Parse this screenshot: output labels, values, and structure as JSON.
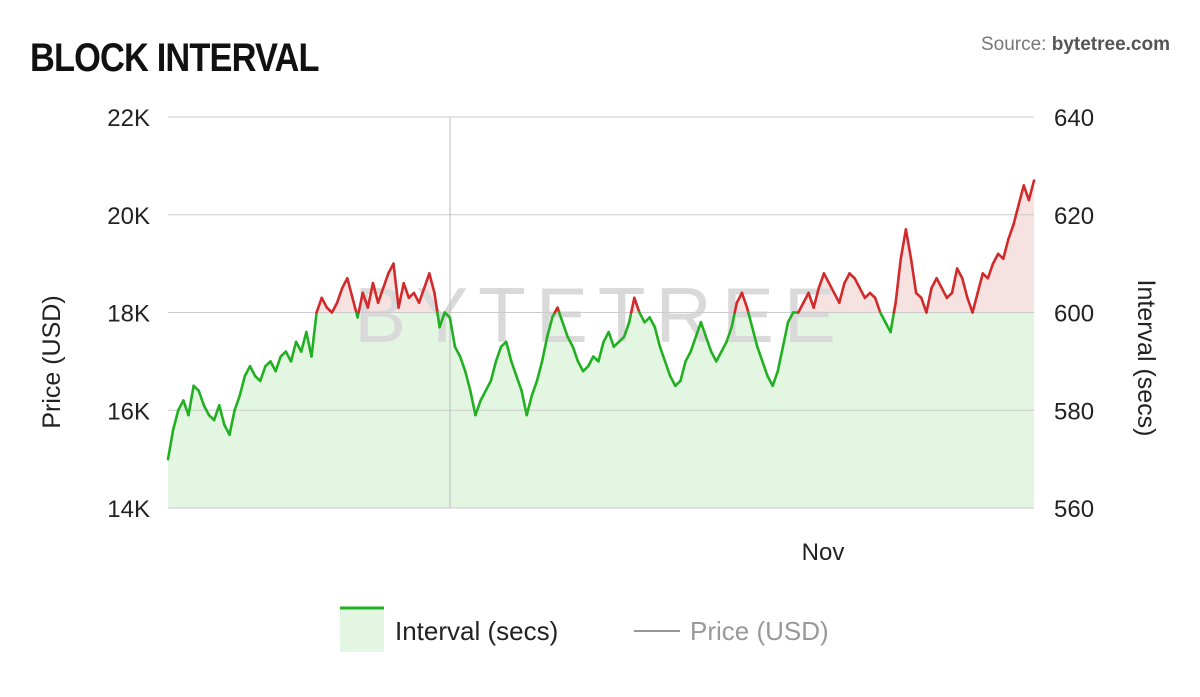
{
  "title": "BLOCK INTERVAL",
  "source": {
    "prefix": "Source:",
    "site": "bytetree.com"
  },
  "watermark": "BYTETREE",
  "colors": {
    "above": "#d22a2a",
    "below": "#22b022",
    "above_fill": "#f7e2e2",
    "below_fill": "#e3f6e1",
    "grid": "#cccccc",
    "price": "#888888"
  },
  "chart_data": {
    "type": "area",
    "title": "BLOCK INTERVAL",
    "x_tick_labels": [
      "Nov"
    ],
    "y_left": {
      "label": "Price (USD)",
      "ticks": [
        "14K",
        "16K",
        "18K",
        "20K",
        "22K"
      ],
      "range": [
        14000,
        22000
      ]
    },
    "y_right": {
      "label": "Interval (secs)",
      "ticks": [
        "560",
        "580",
        "600",
        "620",
        "640"
      ],
      "range": [
        560,
        640
      ]
    },
    "baseline": 600,
    "series": [
      {
        "name": "Interval (secs)",
        "axis": "right",
        "values": [
          570,
          576,
          580,
          582,
          579,
          585,
          584,
          581,
          579,
          578,
          581,
          577,
          575,
          580,
          583,
          587,
          589,
          587,
          586,
          589,
          590,
          588,
          591,
          592,
          590,
          594,
          592,
          596,
          591,
          600,
          603,
          601,
          600,
          602,
          605,
          607,
          603,
          599,
          604,
          601,
          606,
          602,
          605,
          608,
          610,
          601,
          606,
          603,
          604,
          602,
          605,
          608,
          604,
          597,
          600,
          599,
          593,
          591,
          588,
          584,
          579,
          582,
          584,
          586,
          590,
          593,
          594,
          590,
          587,
          584,
          579,
          583,
          586,
          590,
          595,
          599,
          601,
          598,
          595,
          593,
          590,
          588,
          589,
          591,
          590,
          594,
          596,
          593,
          594,
          595,
          598,
          603,
          600,
          598,
          599,
          597,
          593,
          590,
          587,
          585,
          586,
          590,
          592,
          595,
          598,
          595,
          592,
          590,
          592,
          594,
          597,
          602,
          604,
          601,
          597,
          593,
          590,
          587,
          585,
          588,
          593,
          598,
          600,
          600,
          602,
          604,
          601,
          605,
          608,
          606,
          604,
          602,
          606,
          608,
          607,
          605,
          603,
          604,
          603,
          600,
          598,
          596,
          602,
          611,
          617,
          611,
          604,
          603,
          600,
          605,
          607,
          605,
          603,
          604,
          609,
          607,
          603,
          600,
          604,
          608,
          607,
          610,
          612,
          611,
          615,
          618,
          622,
          626,
          623,
          627
        ]
      },
      {
        "name": "Price (USD)",
        "axis": "left",
        "values": []
      }
    ],
    "crosshair": true,
    "legend": {
      "position": "bottom-center"
    },
    "grid": true
  }
}
